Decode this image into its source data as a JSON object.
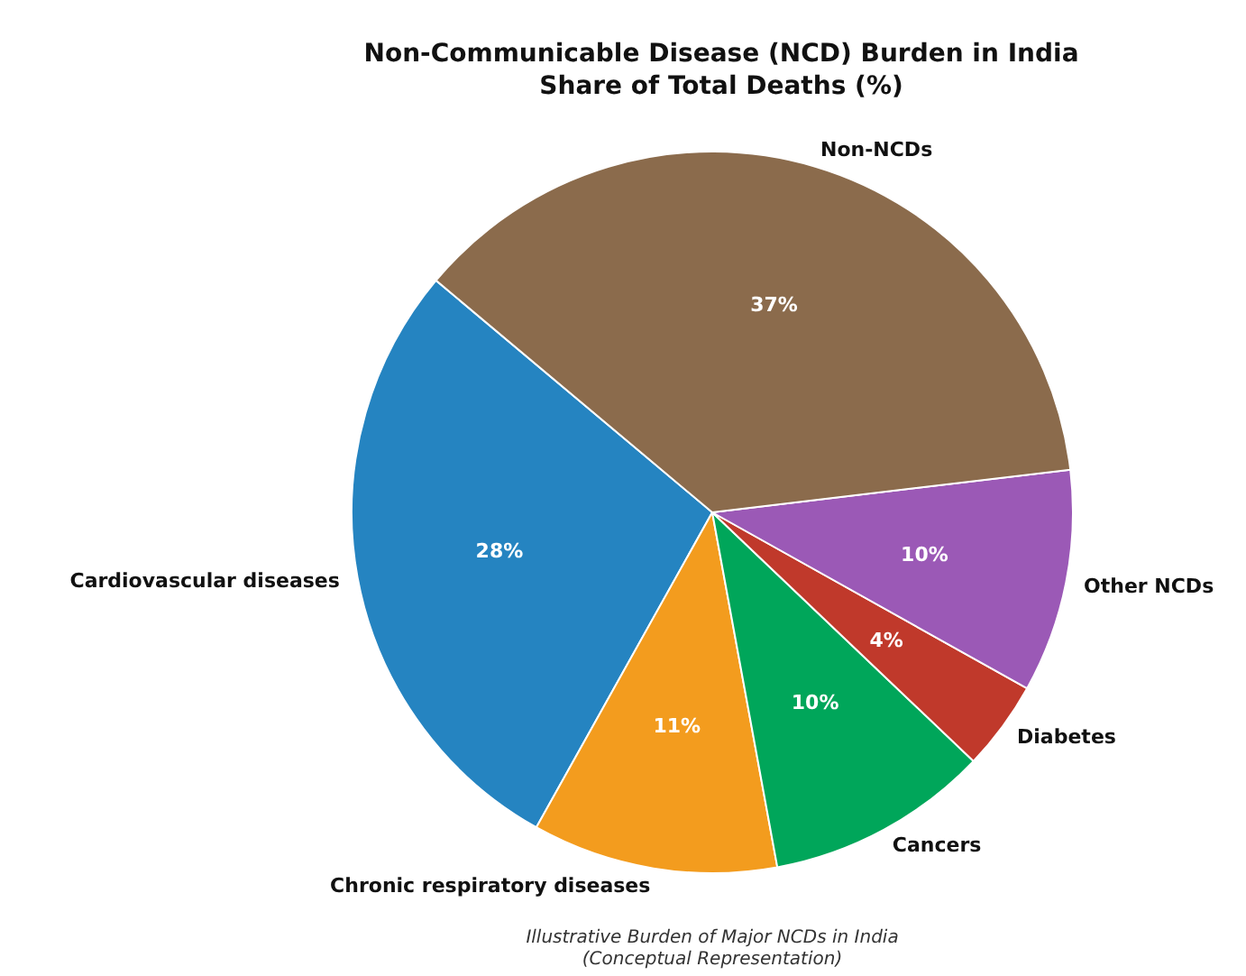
{
  "chart_data": {
    "type": "pie",
    "title": "Non-Communicable Disease (NCD) Burden in India\nShare of Total Deaths (%)",
    "categories": [
      "Cardiovascular diseases",
      "Chronic respiratory diseases",
      "Cancers",
      "Diabetes",
      "Other NCDs",
      "Non-NCDs"
    ],
    "values": [
      28,
      11,
      10,
      4,
      10,
      37
    ],
    "value_labels": [
      "28%",
      "11%",
      "10%",
      "4%",
      "10%",
      "37%"
    ],
    "colors": [
      "#2584c1",
      "#f39c1e",
      "#00a65a",
      "#c0392b",
      "#9b59b6",
      "#8b6b4c"
    ],
    "annotations": [
      "Illustrative Burden of Major NCDs in India\n(Conceptual Representation)"
    ],
    "legend": false
  }
}
